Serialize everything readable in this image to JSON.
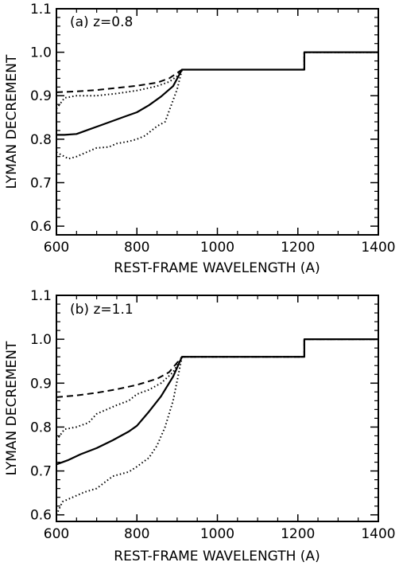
{
  "chart_data": [
    {
      "type": "line",
      "panel_label": "(a)  z=0.8",
      "xlabel": "REST-FRAME WAVELENGTH (A)",
      "ylabel": "LYMAN DECREMENT",
      "xlim": [
        600,
        1400
      ],
      "ylim": [
        0.58,
        1.1
      ],
      "x_ticks": [
        600,
        800,
        1000,
        1200,
        1400
      ],
      "y_ticks": [
        0.6,
        0.7,
        0.8,
        0.9,
        1.0,
        1.1
      ],
      "y_tick_labels": [
        "0.6",
        "0.7",
        "0.8",
        "0.9",
        "1.0",
        "1.1"
      ],
      "series": [
        {
          "style": "solid",
          "x": [
            600,
            620,
            650,
            680,
            710,
            740,
            770,
            800,
            830,
            860,
            890,
            912,
            1216,
            1216,
            1400
          ],
          "y": [
            0.81,
            0.81,
            0.812,
            0.822,
            0.832,
            0.842,
            0.852,
            0.862,
            0.878,
            0.898,
            0.922,
            0.96,
            0.96,
            1.0,
            1.0
          ]
        },
        {
          "style": "dashed",
          "x": [
            600,
            650,
            700,
            750,
            800,
            850,
            880,
            912,
            1216,
            1216,
            1400
          ],
          "y": [
            0.908,
            0.91,
            0.913,
            0.918,
            0.923,
            0.93,
            0.94,
            0.96,
            0.96,
            1.0,
            1.0
          ]
        },
        {
          "style": "dotted",
          "x": [
            600,
            620,
            650,
            700,
            750,
            800,
            850,
            880,
            900,
            912,
            1216,
            1216,
            1400
          ],
          "y": [
            0.87,
            0.895,
            0.9,
            0.9,
            0.905,
            0.912,
            0.922,
            0.932,
            0.945,
            0.96,
            0.96,
            1.0,
            1.0
          ]
        },
        {
          "style": "dotted",
          "x": [
            600,
            630,
            650,
            680,
            700,
            730,
            750,
            780,
            800,
            820,
            850,
            870,
            880,
            900,
            912,
            1216,
            1216,
            1400
          ],
          "y": [
            0.77,
            0.755,
            0.76,
            0.772,
            0.78,
            0.782,
            0.79,
            0.795,
            0.8,
            0.808,
            0.83,
            0.84,
            0.865,
            0.915,
            0.96,
            0.96,
            1.0,
            1.0
          ]
        }
      ]
    },
    {
      "type": "line",
      "panel_label": "(b)  z=1.1",
      "xlabel": "REST-FRAME WAVELENGTH (A)",
      "ylabel": "LYMAN DECREMENT",
      "xlim": [
        600,
        1400
      ],
      "ylim": [
        0.585,
        1.1
      ],
      "x_ticks": [
        600,
        800,
        1000,
        1200,
        1400
      ],
      "y_ticks": [
        0.6,
        0.7,
        0.8,
        0.9,
        1.0,
        1.1
      ],
      "y_tick_labels": [
        "0.6",
        "0.7",
        "0.8",
        "0.9",
        "1.0",
        "1.1"
      ],
      "series": [
        {
          "style": "solid",
          "x": [
            600,
            630,
            660,
            700,
            740,
            780,
            800,
            830,
            860,
            890,
            912,
            1216,
            1216,
            1400
          ],
          "y": [
            0.715,
            0.725,
            0.738,
            0.752,
            0.77,
            0.79,
            0.803,
            0.835,
            0.87,
            0.915,
            0.96,
            0.96,
            1.0,
            1.0
          ]
        },
        {
          "style": "dashed",
          "x": [
            600,
            650,
            700,
            750,
            800,
            850,
            880,
            912,
            1216,
            1216,
            1400
          ],
          "y": [
            0.868,
            0.872,
            0.878,
            0.886,
            0.896,
            0.91,
            0.925,
            0.96,
            0.96,
            1.0,
            1.0
          ]
        },
        {
          "style": "dotted",
          "x": [
            600,
            620,
            650,
            680,
            700,
            750,
            780,
            800,
            830,
            860,
            890,
            912,
            1216,
            1216,
            1400
          ],
          "y": [
            0.77,
            0.795,
            0.8,
            0.81,
            0.83,
            0.85,
            0.86,
            0.875,
            0.885,
            0.9,
            0.925,
            0.96,
            0.96,
            1.0,
            1.0
          ]
        },
        {
          "style": "dotted",
          "x": [
            600,
            615,
            640,
            670,
            700,
            740,
            780,
            800,
            830,
            850,
            870,
            890,
            912,
            1216,
            1216,
            1400
          ],
          "y": [
            0.6,
            0.63,
            0.64,
            0.652,
            0.66,
            0.688,
            0.698,
            0.71,
            0.73,
            0.758,
            0.8,
            0.86,
            0.96,
            0.96,
            1.0,
            1.0
          ]
        }
      ]
    }
  ]
}
